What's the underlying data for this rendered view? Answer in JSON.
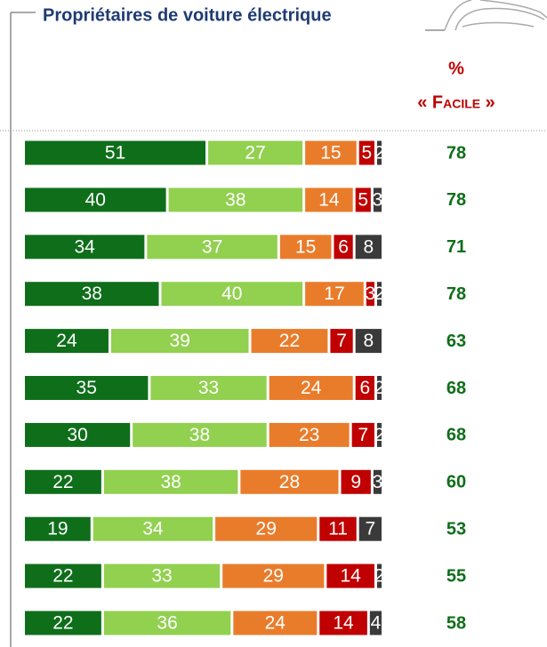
{
  "chart_data": {
    "type": "stacked-bar",
    "title": "Propriétaires de voiture électrique",
    "right_header": [
      "%",
      "« Facile »"
    ],
    "xlim": [
      0,
      100
    ],
    "series": [
      {
        "color": "#0f6e1a",
        "values": [
          51,
          40,
          34,
          38,
          24,
          35,
          30,
          22,
          19,
          22,
          22
        ]
      },
      {
        "color": "#92d050",
        "values": [
          27,
          38,
          37,
          40,
          39,
          33,
          38,
          38,
          34,
          33,
          36
        ]
      },
      {
        "color": "#e97c2b",
        "values": [
          15,
          14,
          15,
          17,
          22,
          24,
          23,
          28,
          29,
          29,
          24
        ]
      },
      {
        "color": "#c00000",
        "values": [
          5,
          5,
          6,
          3,
          7,
          6,
          7,
          9,
          11,
          14,
          14
        ]
      },
      {
        "color": "#3a3a3a",
        "values": [
          2,
          3,
          8,
          2,
          8,
          2,
          2,
          3,
          7,
          2,
          4
        ]
      }
    ],
    "facile": [
      78,
      78,
      71,
      78,
      63,
      68,
      68,
      60,
      53,
      55,
      58
    ]
  }
}
